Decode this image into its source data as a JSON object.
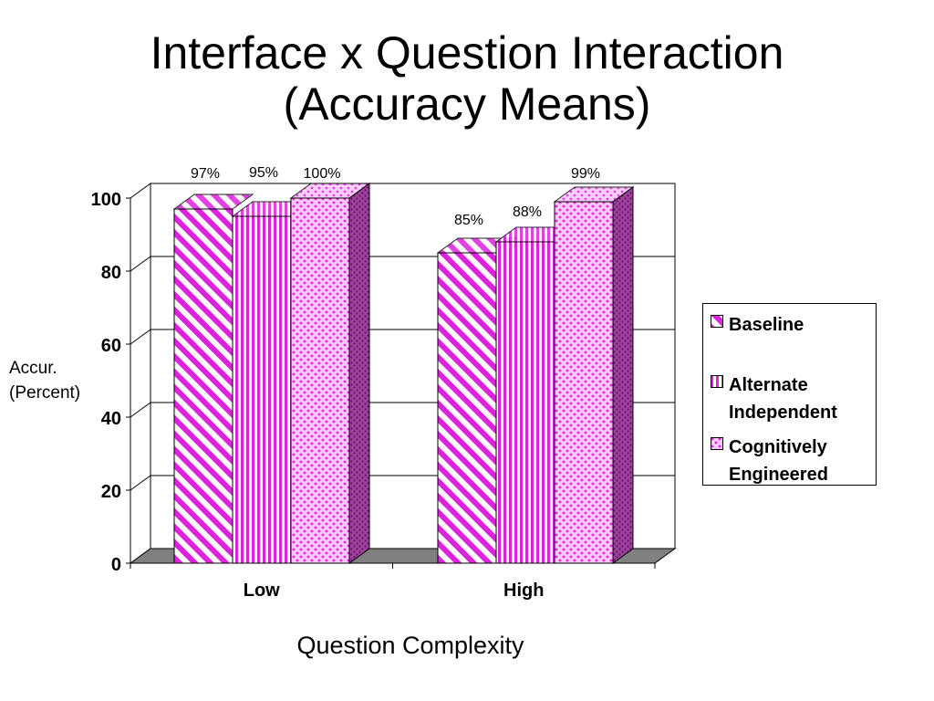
{
  "title": {
    "line1": "Interface x Question Interaction",
    "line2": "(Accuracy Means)"
  },
  "ylabel": {
    "line1": "Accur.",
    "line2": "(Percent)"
  },
  "xlabel": "Question Complexity",
  "colors": {
    "accent": "#dd22dd",
    "floor": "#808080",
    "gridline": "#000000"
  },
  "chart_data": {
    "type": "bar",
    "categories": [
      "Low",
      "High"
    ],
    "series": [
      {
        "name": "Baseline",
        "pattern": "diagonal-hatch",
        "values": [
          97,
          85
        ],
        "labels": [
          "97%",
          "85%"
        ]
      },
      {
        "name": "Alternate Independent",
        "pattern": "vertical-stripes",
        "values": [
          95,
          88
        ],
        "labels": [
          "95%",
          "88%"
        ]
      },
      {
        "name": "Cognitively Engineered",
        "pattern": "dots",
        "values": [
          100,
          99
        ],
        "labels": [
          "100%",
          "99%"
        ]
      }
    ],
    "ylim": [
      0,
      100
    ],
    "yticks": [
      "0",
      "20",
      "40",
      "60",
      "80",
      "100"
    ],
    "ytick_values": [
      0,
      20,
      40,
      60,
      80,
      100
    ],
    "grid": true,
    "legend_position": "right",
    "style": "3d-bar"
  }
}
